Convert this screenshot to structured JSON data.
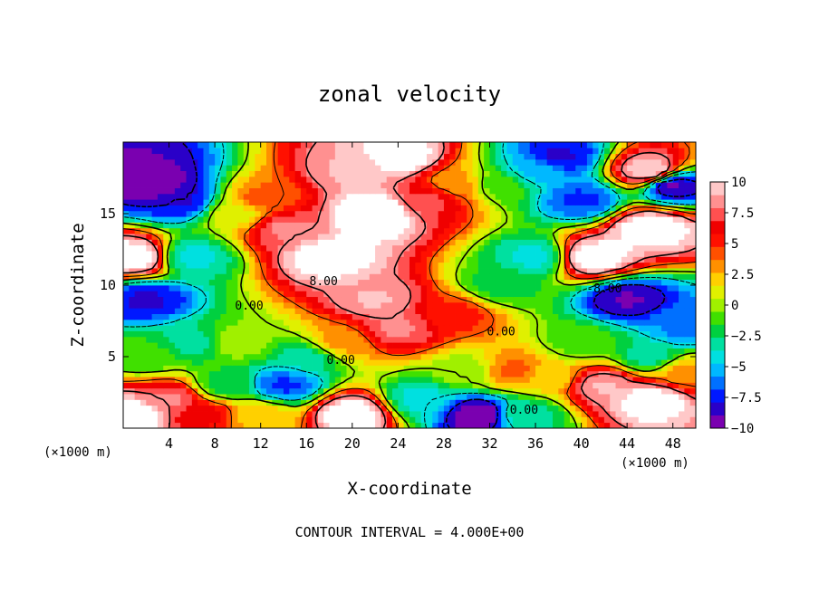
{
  "chart_data": {
    "type": "heatmap",
    "title": "zonal velocity",
    "xlabel": "X-coordinate",
    "ylabel": "Z-coordinate",
    "x_unit": "(×1000 m)",
    "x_ticks": [
      4,
      8,
      12,
      16,
      20,
      24,
      28,
      32,
      36,
      40,
      44,
      48
    ],
    "y_ticks": [
      5,
      10,
      15
    ],
    "xlim": [
      0,
      50
    ],
    "ylim": [
      0,
      20
    ],
    "colorbar": {
      "ticks": [
        "10",
        "7.5",
        "5",
        "2.5",
        "0",
        "-2.5",
        "-5",
        "-7.5",
        "-10"
      ],
      "range": [
        -10,
        10
      ],
      "colors": [
        "#7a00b0",
        "#2a00c8",
        "#0018ff",
        "#0070ff",
        "#00b8ff",
        "#00e0e0",
        "#00e0a0",
        "#00d040",
        "#40e000",
        "#a0f000",
        "#e0f000",
        "#ffd000",
        "#ff9000",
        "#ff5000",
        "#ff1000",
        "#f00000",
        "#ff5050",
        "#ff9090",
        "#ffc8c8"
      ]
    },
    "contour_labels": [
      {
        "text": "8.00",
        "x": 17.5,
        "y": 10.0
      },
      {
        "text": "0.00",
        "x": 11.0,
        "y": 8.3
      },
      {
        "text": "0.00",
        "x": 19.0,
        "y": 4.5
      },
      {
        "text": "0.00",
        "x": 33.0,
        "y": 6.5
      },
      {
        "text": "0.00",
        "x": 35.0,
        "y": 1.0
      },
      {
        "text": "-8.00",
        "x": 42.0,
        "y": 9.5
      }
    ],
    "footer": "CONTOUR INTERVAL = 4.000E+00",
    "field": [
      {
        "x": 1.5,
        "z": 18.5,
        "v": -9
      },
      {
        "x": 3,
        "z": 17,
        "v": -10
      },
      {
        "x": 5,
        "z": 16,
        "v": -8
      },
      {
        "x": 1,
        "z": 12,
        "v": 11
      },
      {
        "x": 2,
        "z": 9,
        "v": -8
      },
      {
        "x": 6,
        "z": 12,
        "v": -4
      },
      {
        "x": 10,
        "z": 15,
        "v": 1
      },
      {
        "x": 12,
        "z": 16,
        "v": 4
      },
      {
        "x": 14,
        "z": 14,
        "v": 8
      },
      {
        "x": 18,
        "z": 12,
        "v": 11
      },
      {
        "x": 22,
        "z": 15,
        "v": 12
      },
      {
        "x": 24,
        "z": 19,
        "v": 11
      },
      {
        "x": 20,
        "z": 18,
        "v": 9
      },
      {
        "x": 27,
        "z": 16,
        "v": 7
      },
      {
        "x": 29,
        "z": 17,
        "v": 3
      },
      {
        "x": 33,
        "z": 17,
        "v": -1
      },
      {
        "x": 36,
        "z": 18,
        "v": -5
      },
      {
        "x": 38,
        "z": 19,
        "v": -8
      },
      {
        "x": 41,
        "z": 12,
        "v": 11
      },
      {
        "x": 46,
        "z": 14,
        "v": 11
      },
      {
        "x": 46,
        "z": 18,
        "v": 10
      },
      {
        "x": 44,
        "z": 9,
        "v": -9
      },
      {
        "x": 48,
        "z": 17,
        "v": -9
      },
      {
        "x": 40,
        "z": 16,
        "v": -7
      },
      {
        "x": 22,
        "z": 9,
        "v": 9
      },
      {
        "x": 24,
        "z": 7,
        "v": 8
      },
      {
        "x": 29,
        "z": 8,
        "v": 5
      },
      {
        "x": 19,
        "z": 6,
        "v": 3
      },
      {
        "x": 16,
        "z": 5,
        "v": -3
      },
      {
        "x": 14,
        "z": 3,
        "v": -7
      },
      {
        "x": 12,
        "z": 1,
        "v": 2
      },
      {
        "x": 9,
        "z": 3,
        "v": -2
      },
      {
        "x": 10,
        "z": 6,
        "v": 0
      },
      {
        "x": 6,
        "z": 6,
        "v": -3
      },
      {
        "x": 2,
        "z": 5,
        "v": -1
      },
      {
        "x": 4,
        "z": 2,
        "v": 8
      },
      {
        "x": 1,
        "z": 1,
        "v": 11
      },
      {
        "x": 7,
        "z": 1,
        "v": 6
      },
      {
        "x": 20,
        "z": 1,
        "v": 11
      },
      {
        "x": 26,
        "z": 2,
        "v": -4
      },
      {
        "x": 31,
        "z": 1,
        "v": -10
      },
      {
        "x": 35,
        "z": 1,
        "v": -3
      },
      {
        "x": 30,
        "z": 4,
        "v": 0
      },
      {
        "x": 34,
        "z": 4,
        "v": 4
      },
      {
        "x": 37,
        "z": 3.5,
        "v": 2
      },
      {
        "x": 42,
        "z": 3,
        "v": 9
      },
      {
        "x": 46,
        "z": 2,
        "v": 11
      },
      {
        "x": 49,
        "z": 4,
        "v": 3
      },
      {
        "x": 46,
        "z": 5,
        "v": -3
      },
      {
        "x": 40,
        "z": 6,
        "v": -1
      },
      {
        "x": 33,
        "z": 10,
        "v": -2
      },
      {
        "x": 36,
        "z": 12,
        "v": -4
      },
      {
        "x": 49,
        "z": 7,
        "v": -6
      }
    ]
  }
}
